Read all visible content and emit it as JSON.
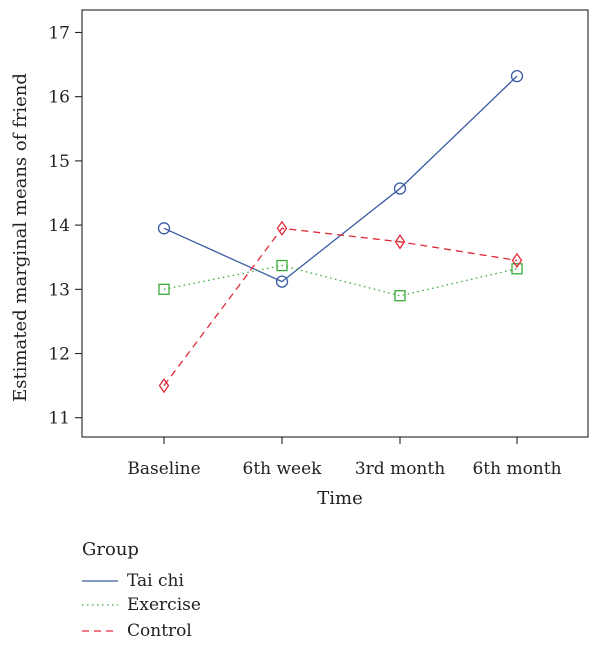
{
  "chart_data": {
    "type": "line",
    "categories": [
      "Baseline",
      "6th week",
      "3rd month",
      "6th month"
    ],
    "xlabel": "Time",
    "ylabel": "Estimated marginal means of friend",
    "ylim": [
      10.7,
      17.35
    ],
    "yticks": [
      11,
      12,
      13,
      14,
      15,
      16,
      17
    ],
    "grid": false,
    "legend_title": "Group",
    "legend_position": "bottom-left",
    "series": [
      {
        "name": "Tai chi",
        "values": [
          13.95,
          13.12,
          14.57,
          16.32
        ],
        "color": "#3b5ba5",
        "dash": "solid",
        "marker": "circle"
      },
      {
        "name": "Exercise",
        "values": [
          13.0,
          13.37,
          12.9,
          13.32
        ],
        "color": "#3aaa3a",
        "dash": "dotted",
        "marker": "square"
      },
      {
        "name": "Control",
        "values": [
          11.5,
          13.95,
          13.74,
          13.45
        ],
        "color": "#e02a3a",
        "dash": "dashed",
        "marker": "diamond"
      }
    ]
  }
}
